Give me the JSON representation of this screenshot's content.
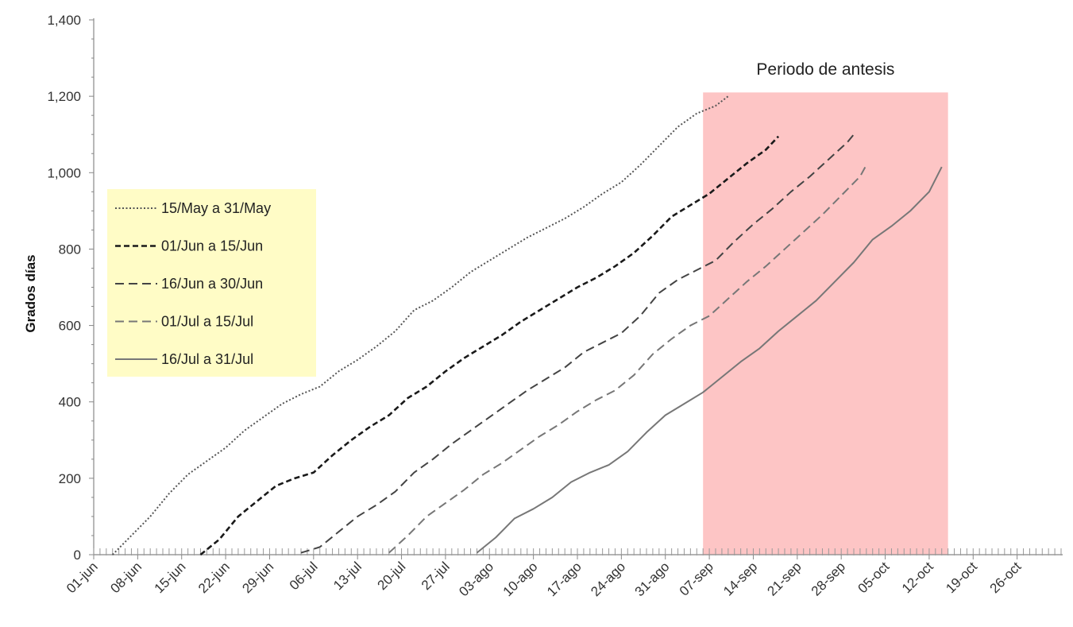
{
  "chart_data": {
    "type": "line",
    "ylabel": "Grados días",
    "xlabel": "",
    "ylim": [
      0,
      1400
    ],
    "yticks": [
      0,
      200,
      400,
      600,
      800,
      1000,
      1200,
      1400
    ],
    "ytick_labels": [
      "0",
      "200",
      "400",
      "600",
      "800",
      "1,000",
      "1,200",
      "1,400"
    ],
    "xlim": [
      "2000-06-01",
      "2000-11-02"
    ],
    "xticks": [
      "2000-06-01",
      "2000-06-08",
      "2000-06-15",
      "2000-06-22",
      "2000-06-29",
      "2000-07-06",
      "2000-07-13",
      "2000-07-20",
      "2000-07-27",
      "2000-08-03",
      "2000-08-10",
      "2000-08-17",
      "2000-08-24",
      "2000-08-31",
      "2000-09-07",
      "2000-09-14",
      "2000-09-21",
      "2000-09-28",
      "2000-10-05",
      "2000-10-12",
      "2000-10-19",
      "2000-10-26"
    ],
    "xtick_labels": [
      "01-jun",
      "08-jun",
      "15-jun",
      "22-jun",
      "29-jun",
      "06-jul",
      "13-jul",
      "20-jul",
      "27-jul",
      "03-ago",
      "10-ago",
      "17-ago",
      "24-ago",
      "31-ago",
      "07-sep",
      "14-sep",
      "21-sep",
      "28-sep",
      "05-oct",
      "12-oct",
      "19-oct",
      "26-oct"
    ],
    "grid": false,
    "legend_position": "left",
    "shaded_region": {
      "label": "Periodo de antesis",
      "x_start": "2000-09-06",
      "x_end": "2000-10-15",
      "y_top": 1210,
      "color": "#fdc5c5"
    },
    "series": [
      {
        "name": "15/May a 31/May",
        "style": "dotted",
        "color": "#555555",
        "points": [
          [
            "2000-06-04",
            0
          ],
          [
            "2000-06-07",
            50
          ],
          [
            "2000-06-10",
            100
          ],
          [
            "2000-06-13",
            160
          ],
          [
            "2000-06-16",
            210
          ],
          [
            "2000-06-19",
            245
          ],
          [
            "2000-06-22",
            280
          ],
          [
            "2000-06-25",
            325
          ],
          [
            "2000-06-28",
            360
          ],
          [
            "2000-07-01",
            395
          ],
          [
            "2000-07-04",
            420
          ],
          [
            "2000-07-07",
            440
          ],
          [
            "2000-07-10",
            480
          ],
          [
            "2000-07-13",
            510
          ],
          [
            "2000-07-16",
            545
          ],
          [
            "2000-07-19",
            585
          ],
          [
            "2000-07-22",
            640
          ],
          [
            "2000-07-25",
            665
          ],
          [
            "2000-07-28",
            700
          ],
          [
            "2000-07-31",
            740
          ],
          [
            "2000-08-03",
            770
          ],
          [
            "2000-08-06",
            800
          ],
          [
            "2000-08-09",
            830
          ],
          [
            "2000-08-12",
            855
          ],
          [
            "2000-08-15",
            880
          ],
          [
            "2000-08-18",
            910
          ],
          [
            "2000-08-21",
            945
          ],
          [
            "2000-08-24",
            975
          ],
          [
            "2000-08-27",
            1020
          ],
          [
            "2000-08-30",
            1070
          ],
          [
            "2000-09-02",
            1120
          ],
          [
            "2000-09-05",
            1155
          ],
          [
            "2000-09-08",
            1175
          ],
          [
            "2000-09-10",
            1200
          ]
        ]
      },
      {
        "name": "01/Jun a 15/Jun",
        "style": "dashed-short",
        "color": "#1a1a1a",
        "points": [
          [
            "2000-06-18",
            0
          ],
          [
            "2000-06-21",
            40
          ],
          [
            "2000-06-24",
            100
          ],
          [
            "2000-06-27",
            140
          ],
          [
            "2000-06-30",
            180
          ],
          [
            "2000-07-03",
            200
          ],
          [
            "2000-07-06",
            215
          ],
          [
            "2000-07-09",
            260
          ],
          [
            "2000-07-12",
            300
          ],
          [
            "2000-07-15",
            335
          ],
          [
            "2000-07-18",
            365
          ],
          [
            "2000-07-21",
            410
          ],
          [
            "2000-07-24",
            440
          ],
          [
            "2000-07-27",
            480
          ],
          [
            "2000-07-30",
            515
          ],
          [
            "2000-08-02",
            545
          ],
          [
            "2000-08-05",
            575
          ],
          [
            "2000-08-08",
            610
          ],
          [
            "2000-08-11",
            640
          ],
          [
            "2000-08-14",
            670
          ],
          [
            "2000-08-17",
            700
          ],
          [
            "2000-08-20",
            725
          ],
          [
            "2000-08-23",
            755
          ],
          [
            "2000-08-26",
            790
          ],
          [
            "2000-08-29",
            835
          ],
          [
            "2000-09-01",
            885
          ],
          [
            "2000-09-04",
            915
          ],
          [
            "2000-09-07",
            945
          ],
          [
            "2000-09-10",
            985
          ],
          [
            "2000-09-13",
            1025
          ],
          [
            "2000-09-16",
            1060
          ],
          [
            "2000-09-18",
            1095
          ]
        ]
      },
      {
        "name": "16/Jun a 30/Jun",
        "style": "dashed-long",
        "color": "#444444",
        "points": [
          [
            "2000-07-04",
            5
          ],
          [
            "2000-07-07",
            20
          ],
          [
            "2000-07-10",
            60
          ],
          [
            "2000-07-13",
            100
          ],
          [
            "2000-07-16",
            130
          ],
          [
            "2000-07-19",
            165
          ],
          [
            "2000-07-22",
            215
          ],
          [
            "2000-07-25",
            250
          ],
          [
            "2000-07-28",
            290
          ],
          [
            "2000-07-31",
            325
          ],
          [
            "2000-08-03",
            360
          ],
          [
            "2000-08-06",
            395
          ],
          [
            "2000-08-09",
            430
          ],
          [
            "2000-08-12",
            460
          ],
          [
            "2000-08-15",
            490
          ],
          [
            "2000-08-18",
            530
          ],
          [
            "2000-08-21",
            555
          ],
          [
            "2000-08-24",
            580
          ],
          [
            "2000-08-27",
            625
          ],
          [
            "2000-08-30",
            685
          ],
          [
            "2000-09-02",
            720
          ],
          [
            "2000-09-05",
            745
          ],
          [
            "2000-09-08",
            770
          ],
          [
            "2000-09-11",
            820
          ],
          [
            "2000-09-14",
            865
          ],
          [
            "2000-09-17",
            905
          ],
          [
            "2000-09-20",
            950
          ],
          [
            "2000-09-23",
            990
          ],
          [
            "2000-09-26",
            1035
          ],
          [
            "2000-09-29",
            1080
          ],
          [
            "2000-09-30",
            1100
          ]
        ]
      },
      {
        "name": "01/Jul a 15/Jul",
        "style": "dashed-long",
        "color": "#777777",
        "points": [
          [
            "2000-07-18",
            5
          ],
          [
            "2000-07-21",
            50
          ],
          [
            "2000-07-24",
            100
          ],
          [
            "2000-07-27",
            135
          ],
          [
            "2000-07-30",
            170
          ],
          [
            "2000-08-02",
            210
          ],
          [
            "2000-08-05",
            240
          ],
          [
            "2000-08-08",
            275
          ],
          [
            "2000-08-11",
            310
          ],
          [
            "2000-08-14",
            340
          ],
          [
            "2000-08-17",
            375
          ],
          [
            "2000-08-20",
            405
          ],
          [
            "2000-08-23",
            430
          ],
          [
            "2000-08-26",
            470
          ],
          [
            "2000-08-29",
            525
          ],
          [
            "2000-09-01",
            565
          ],
          [
            "2000-09-04",
            600
          ],
          [
            "2000-09-07",
            625
          ],
          [
            "2000-09-10",
            670
          ],
          [
            "2000-09-13",
            715
          ],
          [
            "2000-09-16",
            755
          ],
          [
            "2000-09-19",
            800
          ],
          [
            "2000-09-22",
            845
          ],
          [
            "2000-09-25",
            890
          ],
          [
            "2000-09-28",
            940
          ],
          [
            "2000-10-01",
            990
          ],
          [
            "2000-10-02",
            1020
          ]
        ]
      },
      {
        "name": "16/Jul a 31/Jul",
        "style": "solid",
        "color": "#777777",
        "points": [
          [
            "2000-08-01",
            5
          ],
          [
            "2000-08-04",
            45
          ],
          [
            "2000-08-07",
            95
          ],
          [
            "2000-08-10",
            120
          ],
          [
            "2000-08-13",
            150
          ],
          [
            "2000-08-16",
            190
          ],
          [
            "2000-08-19",
            215
          ],
          [
            "2000-08-22",
            235
          ],
          [
            "2000-08-25",
            270
          ],
          [
            "2000-08-28",
            320
          ],
          [
            "2000-08-31",
            365
          ],
          [
            "2000-09-03",
            395
          ],
          [
            "2000-09-06",
            425
          ],
          [
            "2000-09-09",
            465
          ],
          [
            "2000-09-12",
            505
          ],
          [
            "2000-09-15",
            540
          ],
          [
            "2000-09-18",
            585
          ],
          [
            "2000-09-21",
            625
          ],
          [
            "2000-09-24",
            665
          ],
          [
            "2000-09-27",
            715
          ],
          [
            "2000-09-30",
            765
          ],
          [
            "2000-10-03",
            825
          ],
          [
            "2000-10-06",
            860
          ],
          [
            "2000-10-09",
            900
          ],
          [
            "2000-10-12",
            950
          ],
          [
            "2000-10-14",
            1015
          ]
        ]
      }
    ]
  }
}
